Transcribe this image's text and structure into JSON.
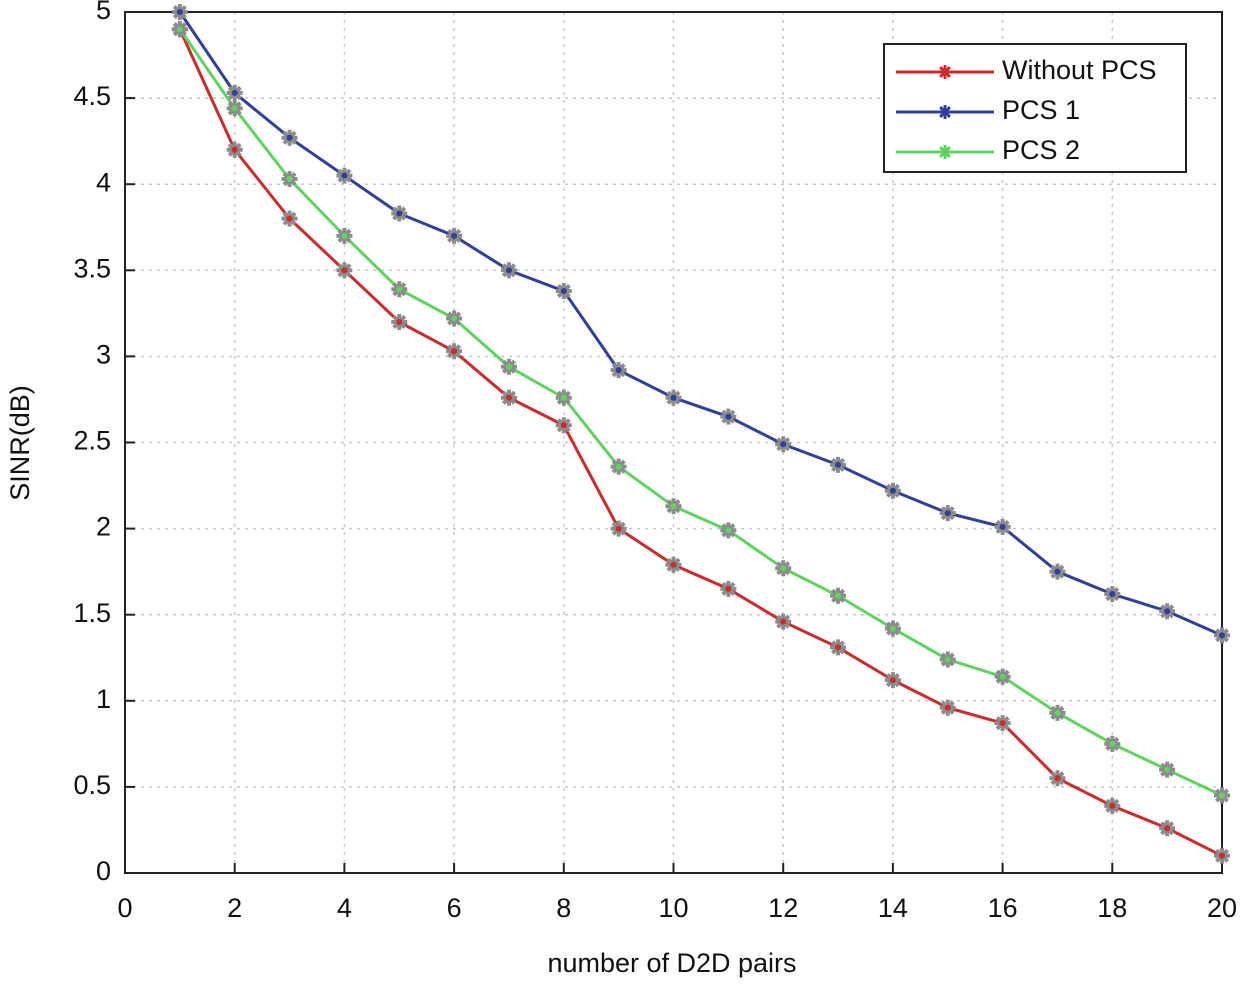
{
  "chart_data": {
    "type": "line",
    "xlabel": "number of D2D pairs",
    "ylabel": "SINR(dB)",
    "x": [
      1,
      2,
      3,
      4,
      5,
      6,
      7,
      8,
      9,
      10,
      11,
      12,
      13,
      14,
      15,
      16,
      17,
      18,
      19,
      20
    ],
    "series": [
      {
        "name": "Without PCS",
        "color": "#cf2a2a",
        "values": [
          4.9,
          4.2,
          3.8,
          3.5,
          3.2,
          3.03,
          2.76,
          2.6,
          2.0,
          1.79,
          1.65,
          1.46,
          1.31,
          1.12,
          0.96,
          0.87,
          0.55,
          0.39,
          0.26,
          0.1
        ]
      },
      {
        "name": "PCS 1",
        "color": "#2f3f9c",
        "values": [
          5.0,
          4.53,
          4.27,
          4.05,
          3.83,
          3.7,
          3.5,
          3.38,
          2.92,
          2.76,
          2.65,
          2.49,
          2.37,
          2.22,
          2.09,
          2.01,
          1.75,
          1.62,
          1.52,
          1.38
        ]
      },
      {
        "name": "PCS 2",
        "color": "#5fd35f",
        "values": [
          4.9,
          4.44,
          4.03,
          3.7,
          3.39,
          3.22,
          2.94,
          2.76,
          2.36,
          2.13,
          1.99,
          1.77,
          1.61,
          1.42,
          1.24,
          1.14,
          0.93,
          0.75,
          0.6,
          0.45
        ]
      }
    ],
    "xlim": [
      0,
      20
    ],
    "xticks": [
      0,
      2,
      4,
      6,
      8,
      10,
      12,
      14,
      16,
      18,
      20
    ],
    "ylim": [
      0,
      5
    ],
    "yticks": [
      0,
      0.5,
      1,
      1.5,
      2,
      2.5,
      3,
      3.5,
      4,
      4.5,
      5
    ],
    "grid": true,
    "legend": "northeast",
    "marker_color": "#8c8c8c"
  }
}
